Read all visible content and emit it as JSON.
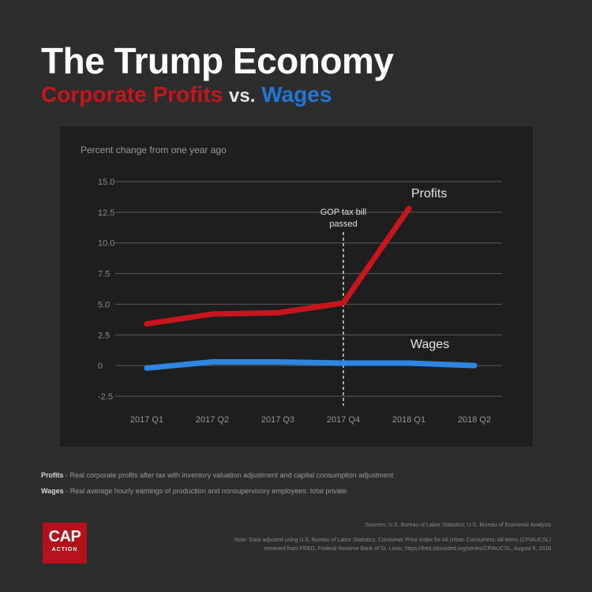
{
  "header": {
    "title": "The Trump Economy",
    "subtitle_profits": "Corporate Profits",
    "subtitle_vs": "vs.",
    "subtitle_wages": "Wages"
  },
  "chart_data": {
    "type": "line",
    "ylabel": "Percent change from one year ago",
    "categories": [
      "2017 Q1",
      "2017 Q2",
      "2017 Q3",
      "2017 Q4",
      "2018 Q1",
      "2018 Q2"
    ],
    "yticks": [
      "15.0",
      "12.5",
      "10.0",
      "7.5",
      "5.0",
      "2.5",
      "0",
      "-2.5"
    ],
    "ylim": [
      -2.5,
      15
    ],
    "grid": true,
    "series": [
      {
        "name": "Profits",
        "values": [
          3.4,
          4.2,
          4.3,
          5.1,
          12.8,
          null
        ],
        "color": "#c8161d"
      },
      {
        "name": "Wages",
        "values": [
          -0.2,
          0.3,
          0.3,
          0.2,
          0.2,
          0.0
        ],
        "color": "#2f86e0"
      }
    ],
    "annotation": {
      "text_line1": "GOP tax bill",
      "text_line2": "passed",
      "x_category": "2017 Q4"
    }
  },
  "notes": {
    "profits_label": "Profits",
    "profits_text": "- Real corporate profits after tax with inventory valuation adjustment and capital consumption adjustment",
    "wages_label": "Wages",
    "wages_text": "- Real average hourly earnings of production and nonsupervisory employees: total private"
  },
  "logo": {
    "big": "CAP",
    "small": "ACTION"
  },
  "sources": {
    "line1": "Sources: U.S. Bureau of Labor Statistics; U.S. Bureau of Economic Analysis",
    "line2": "Note: Data adjusted using U.S. Bureau of Labor Statistics, Consumer Price Index for All Urban Consumers: All items (CPIAUCSL)",
    "line3": "retrieved from FRED, Federal Reserve Bank of St. Louis; https://fred.stlouisfed.org/series/CPIAUCSL, August 9, 2018"
  }
}
